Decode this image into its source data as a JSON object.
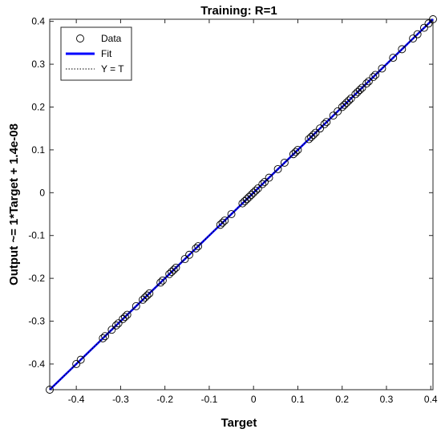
{
  "chart_data": {
    "type": "scatter",
    "title": "Training: R=1",
    "xlabel": "Target",
    "ylabel": "Output ~= 1*Target + 1.4e-08",
    "xlim": [
      -0.46,
      0.405
    ],
    "ylim": [
      -0.46,
      0.405
    ],
    "xticks": [
      "-0.4",
      "-0.3",
      "-0.2",
      "-0.1",
      "0",
      "0.1",
      "0.2",
      "0.3",
      "0.4"
    ],
    "yticks": [
      "-0.4",
      "-0.3",
      "-0.2",
      "-0.1",
      "0",
      "0.1",
      "0.2",
      "0.3",
      "0.4"
    ],
    "grid": false,
    "legend": {
      "placement": "top-left",
      "entries": [
        "Data",
        "Fit",
        "Y = T"
      ]
    },
    "series": [
      {
        "name": "Data",
        "type": "scatter",
        "marker": "open-circle",
        "color": "#000000",
        "x": [
          -0.46,
          -0.4,
          -0.39,
          -0.34,
          -0.335,
          -0.32,
          -0.31,
          -0.305,
          -0.295,
          -0.29,
          -0.285,
          -0.265,
          -0.25,
          -0.245,
          -0.24,
          -0.235,
          -0.21,
          -0.205,
          -0.19,
          -0.185,
          -0.18,
          -0.175,
          -0.155,
          -0.145,
          -0.13,
          -0.125,
          -0.075,
          -0.07,
          -0.065,
          -0.05,
          -0.025,
          -0.02,
          -0.015,
          -0.01,
          -0.005,
          0.0,
          0.005,
          0.01,
          0.02,
          0.025,
          0.035,
          0.055,
          0.07,
          0.09,
          0.095,
          0.1,
          0.125,
          0.13,
          0.135,
          0.14,
          0.15,
          0.16,
          0.165,
          0.18,
          0.19,
          0.2,
          0.205,
          0.21,
          0.215,
          0.22,
          0.23,
          0.235,
          0.24,
          0.245,
          0.255,
          0.26,
          0.27,
          0.275,
          0.29,
          0.315,
          0.335,
          0.36,
          0.37,
          0.385,
          0.395,
          0.405
        ],
        "y": [
          -0.46,
          -0.4,
          -0.39,
          -0.34,
          -0.335,
          -0.32,
          -0.31,
          -0.305,
          -0.295,
          -0.29,
          -0.285,
          -0.265,
          -0.25,
          -0.245,
          -0.24,
          -0.235,
          -0.21,
          -0.205,
          -0.19,
          -0.185,
          -0.18,
          -0.175,
          -0.155,
          -0.145,
          -0.13,
          -0.125,
          -0.075,
          -0.07,
          -0.065,
          -0.05,
          -0.025,
          -0.02,
          -0.015,
          -0.01,
          -0.005,
          0.0,
          0.005,
          0.01,
          0.02,
          0.025,
          0.035,
          0.055,
          0.07,
          0.09,
          0.095,
          0.1,
          0.125,
          0.13,
          0.135,
          0.14,
          0.15,
          0.16,
          0.165,
          0.18,
          0.19,
          0.2,
          0.205,
          0.21,
          0.215,
          0.22,
          0.23,
          0.235,
          0.24,
          0.245,
          0.255,
          0.26,
          0.27,
          0.275,
          0.29,
          0.315,
          0.335,
          0.36,
          0.37,
          0.385,
          0.395,
          0.405
        ]
      },
      {
        "name": "Fit",
        "type": "line",
        "color": "#0000ff",
        "x": [
          -0.46,
          0.405
        ],
        "y": [
          -0.46,
          0.405
        ]
      },
      {
        "name": "Y = T",
        "type": "line",
        "style": "dotted",
        "color": "#000000",
        "x": [
          -0.46,
          0.405
        ],
        "y": [
          -0.46,
          0.405
        ]
      }
    ]
  }
}
